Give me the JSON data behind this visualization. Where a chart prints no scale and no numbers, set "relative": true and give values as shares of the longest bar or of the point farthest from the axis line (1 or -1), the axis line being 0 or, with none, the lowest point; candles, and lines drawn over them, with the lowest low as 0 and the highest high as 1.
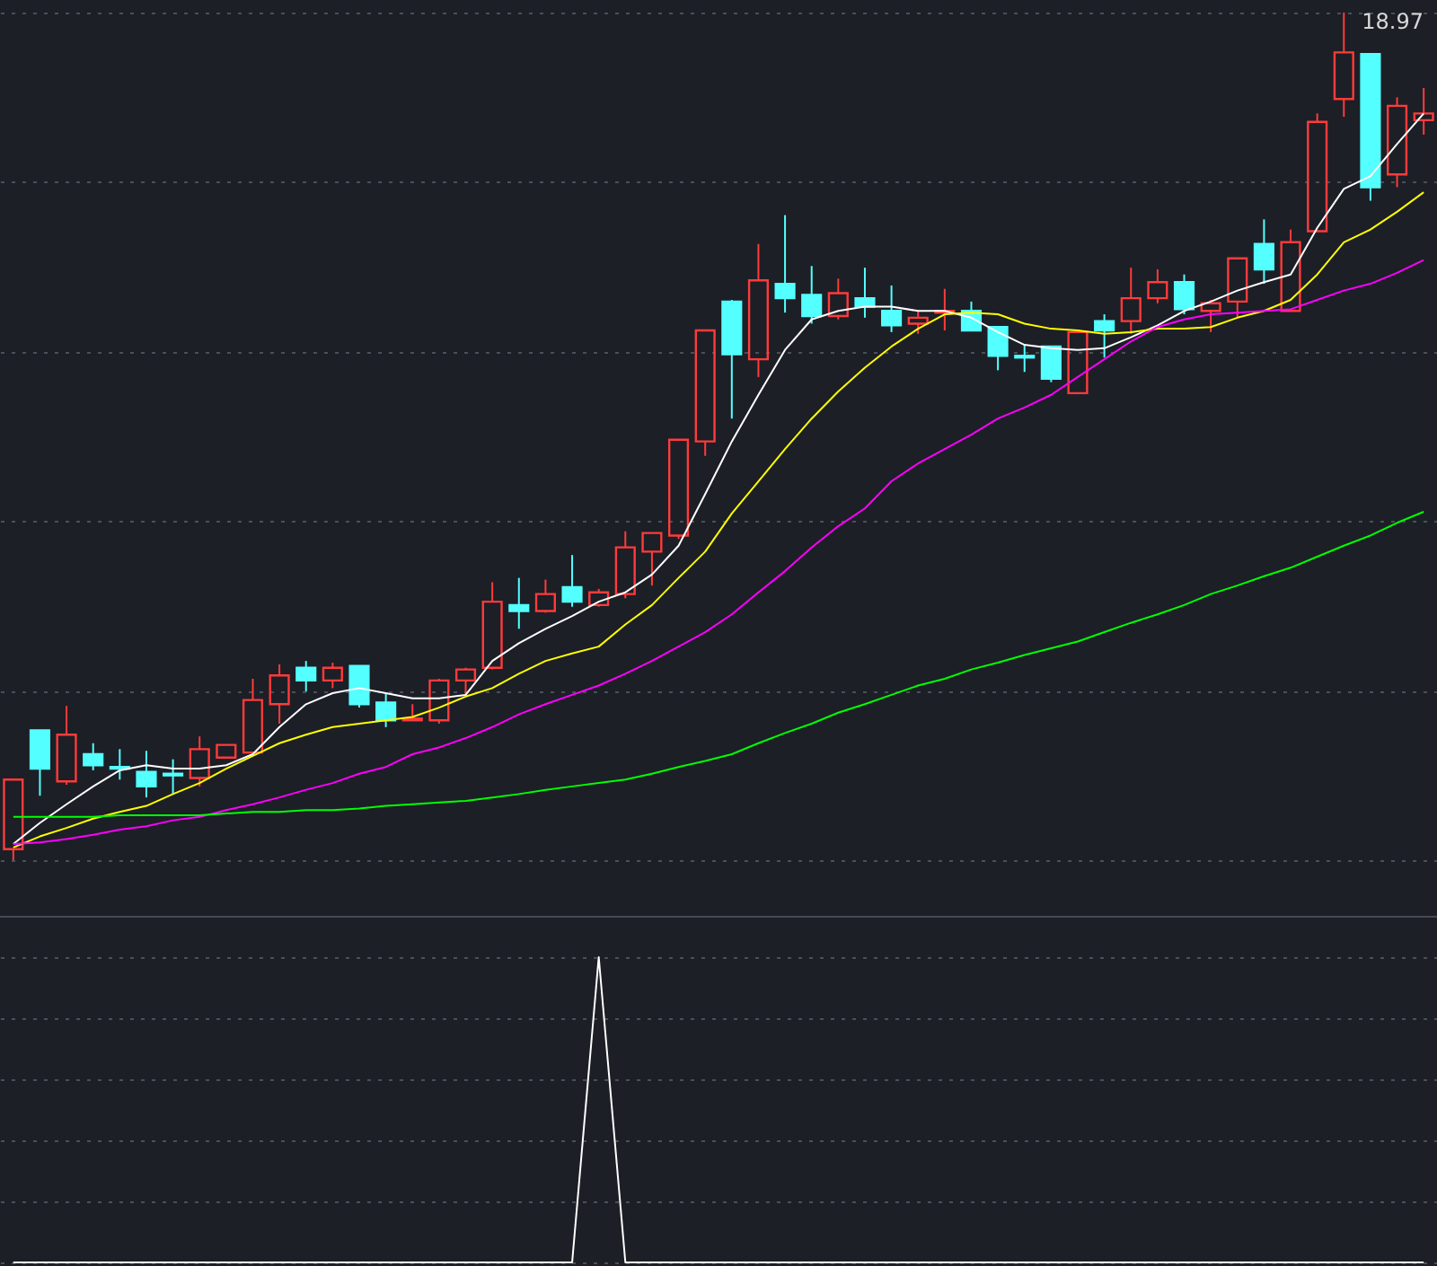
{
  "chart_data": [
    {
      "type": "candlestick",
      "relative": true,
      "grid": true,
      "categories": [
        null,
        null,
        null,
        null,
        null,
        null,
        null,
        null,
        null,
        null,
        null,
        null,
        null,
        null,
        null,
        null,
        null,
        null,
        null,
        null,
        null,
        null,
        null,
        null,
        null,
        null,
        null,
        null,
        null,
        null,
        null,
        null,
        null,
        null,
        null,
        null,
        null,
        null,
        null,
        null,
        null,
        null,
        null,
        null,
        null,
        null,
        null,
        null,
        null,
        null,
        null,
        null,
        null,
        null
      ],
      "ohlc": [
        [
          0.013,
          0.095,
          0,
          0.095
        ],
        [
          0.153,
          0.153,
          0.076,
          0.108
        ],
        [
          0.093,
          0.182,
          0.089,
          0.148
        ],
        [
          0.125,
          0.138,
          0.106,
          0.112
        ],
        [
          0.11,
          0.131,
          0.095,
          0.108
        ],
        [
          0.104,
          0.129,
          0.074,
          0.087
        ],
        [
          0.102,
          0.119,
          0.078,
          0.1
        ],
        [
          0.097,
          0.146,
          0.087,
          0.131
        ],
        [
          0.121,
          0.136,
          0.121,
          0.136
        ],
        [
          0.127,
          0.214,
          0.127,
          0.189
        ],
        [
          0.184,
          0.231,
          0.161,
          0.218
        ],
        [
          0.227,
          0.235,
          0.199,
          0.212
        ],
        [
          0.212,
          0.233,
          0.203,
          0.227
        ],
        [
          0.229,
          0.229,
          0.18,
          0.184
        ],
        [
          0.186,
          0.197,
          0.157,
          0.165
        ],
        [
          0.165,
          0.184,
          0.165,
          0.167
        ],
        [
          0.165,
          0.214,
          0.161,
          0.212
        ],
        [
          0.212,
          0.227,
          0.195,
          0.225
        ],
        [
          0.227,
          0.328,
          0.225,
          0.305
        ],
        [
          0.301,
          0.333,
          0.273,
          0.294
        ],
        [
          0.294,
          0.331,
          0.292,
          0.314
        ],
        [
          0.322,
          0.36,
          0.299,
          0.305
        ],
        [
          0.301,
          0.32,
          0.299,
          0.316
        ],
        [
          0.314,
          0.388,
          0.309,
          0.369
        ],
        [
          0.364,
          0.386,
          0.324,
          0.386
        ],
        [
          0.383,
          0.496,
          0.379,
          0.496
        ],
        [
          0.494,
          0.625,
          0.477,
          0.625
        ],
        [
          0.659,
          0.661,
          0.521,
          0.597
        ],
        [
          0.591,
          0.727,
          0.57,
          0.684
        ],
        [
          0.68,
          0.761,
          0.646,
          0.663
        ],
        [
          0.667,
          0.701,
          0.633,
          0.642
        ],
        [
          0.642,
          0.686,
          0.638,
          0.669
        ],
        [
          0.663,
          0.699,
          0.64,
          0.653
        ],
        [
          0.648,
          0.678,
          0.623,
          0.631
        ],
        [
          0.633,
          0.648,
          0.621,
          0.64
        ],
        [
          0.646,
          0.674,
          0.625,
          0.648
        ],
        [
          0.648,
          0.659,
          0.625,
          0.625
        ],
        [
          0.629,
          0.629,
          0.578,
          0.595
        ],
        [
          0.595,
          0.608,
          0.576,
          0.593
        ],
        [
          0.606,
          0.606,
          0.564,
          0.568
        ],
        [
          0.551,
          0.623,
          0.551,
          0.623
        ],
        [
          0.636,
          0.644,
          0.593,
          0.625
        ],
        [
          0.636,
          0.699,
          0.621,
          0.663
        ],
        [
          0.663,
          0.697,
          0.657,
          0.682
        ],
        [
          0.682,
          0.691,
          0.644,
          0.65
        ],
        [
          0.648,
          0.661,
          0.623,
          0.657
        ],
        [
          0.659,
          0.71,
          0.64,
          0.71
        ],
        [
          0.727,
          0.756,
          0.68,
          0.697
        ],
        [
          0.648,
          0.744,
          0.648,
          0.729
        ],
        [
          0.742,
          0.881,
          0.742,
          0.871
        ],
        [
          0.898,
          1,
          0.877,
          0.953
        ],
        [
          0.951,
          0.951,
          0.778,
          0.794
        ],
        [
          0.809,
          0.9,
          0.794,
          0.89
        ],
        [
          0.873,
          0.911,
          0.856,
          0.881
        ]
      ],
      "colors": [
        "#ff3b3b",
        "#54ffff",
        "#ff3b3b",
        "#54ffff",
        "#54ffff",
        "#54ffff",
        "#54ffff",
        "#ff3b3b",
        "#ff3b3b",
        "#ff3b3b",
        "#ff3b3b",
        "#54ffff",
        "#ff3b3b",
        "#54ffff",
        "#54ffff",
        "#ff3b3b",
        "#ff3b3b",
        "#ff3b3b",
        "#ff3b3b",
        "#54ffff",
        "#ff3b3b",
        "#54ffff",
        "#ff3b3b",
        "#ff3b3b",
        "#ff3b3b",
        "#ff3b3b",
        "#ff3b3b",
        "#54ffff",
        "#ff3b3b",
        "#54ffff",
        "#54ffff",
        "#ff3b3b",
        "#54ffff",
        "#54ffff",
        "#ff3b3b",
        "#ff3b3b",
        "#54ffff",
        "#54ffff",
        "#54ffff",
        "#54ffff",
        "#ff3b3b",
        "#54ffff",
        "#ff3b3b",
        "#ff3b3b",
        "#54ffff",
        "#ff3b3b",
        "#ff3b3b",
        "#54ffff",
        "#ff3b3b",
        "#ff3b3b",
        "#ff3b3b",
        "#54ffff",
        "#ff3b3b",
        "#ff3b3b"
      ],
      "series": [
        {
          "type": "line",
          "color": "#ffffff",
          "values": [
            0.019,
            0.044,
            0.066,
            0.087,
            0.106,
            0.112,
            0.108,
            0.108,
            0.112,
            0.125,
            0.157,
            0.184,
            0.197,
            0.203,
            0.197,
            0.191,
            0.191,
            0.195,
            0.235,
            0.256,
            0.273,
            0.288,
            0.305,
            0.316,
            0.337,
            0.371,
            0.432,
            0.494,
            0.549,
            0.602,
            0.638,
            0.648,
            0.653,
            0.653,
            0.648,
            0.648,
            0.64,
            0.623,
            0.608,
            0.604,
            0.602,
            0.604,
            0.617,
            0.631,
            0.648,
            0.659,
            0.672,
            0.682,
            0.691,
            0.746,
            0.792,
            0.807,
            0.845,
            0.881
          ]
        },
        {
          "type": "line",
          "color": "#ffff00",
          "values": [
            0.015,
            0.028,
            0.038,
            0.049,
            0.057,
            0.064,
            0.078,
            0.091,
            0.108,
            0.123,
            0.138,
            0.148,
            0.157,
            0.161,
            0.165,
            0.169,
            0.18,
            0.193,
            0.203,
            0.22,
            0.235,
            0.244,
            0.252,
            0.278,
            0.301,
            0.333,
            0.364,
            0.409,
            0.447,
            0.485,
            0.521,
            0.553,
            0.581,
            0.606,
            0.627,
            0.644,
            0.646,
            0.644,
            0.633,
            0.627,
            0.625,
            0.621,
            0.623,
            0.627,
            0.627,
            0.629,
            0.64,
            0.648,
            0.661,
            0.691,
            0.729,
            0.744,
            0.765,
            0.788
          ]
        },
        {
          "type": "line",
          "color": "#ff00ff",
          "values": [
            0.019,
            0.021,
            0.025,
            0.03,
            0.036,
            0.04,
            0.047,
            0.051,
            0.059,
            0.066,
            0.074,
            0.083,
            0.091,
            0.102,
            0.11,
            0.125,
            0.133,
            0.144,
            0.157,
            0.172,
            0.184,
            0.195,
            0.206,
            0.22,
            0.235,
            0.252,
            0.269,
            0.29,
            0.316,
            0.341,
            0.369,
            0.394,
            0.415,
            0.447,
            0.468,
            0.485,
            0.502,
            0.521,
            0.534,
            0.549,
            0.57,
            0.591,
            0.612,
            0.629,
            0.638,
            0.644,
            0.646,
            0.648,
            0.65,
            0.661,
            0.672,
            0.68,
            0.693,
            0.708
          ]
        },
        {
          "type": "line",
          "color": "#00ff00",
          "values": [
            0.051,
            0.051,
            0.051,
            0.051,
            0.053,
            0.053,
            0.053,
            0.053,
            0.055,
            0.057,
            0.057,
            0.059,
            0.059,
            0.061,
            0.064,
            0.066,
            0.068,
            0.07,
            0.074,
            0.078,
            0.083,
            0.087,
            0.091,
            0.095,
            0.102,
            0.11,
            0.117,
            0.125,
            0.138,
            0.15,
            0.161,
            0.174,
            0.184,
            0.195,
            0.206,
            0.214,
            0.225,
            0.233,
            0.242,
            0.25,
            0.258,
            0.269,
            0.28,
            0.29,
            0.301,
            0.314,
            0.324,
            0.335,
            0.345,
            0.358,
            0.371,
            0.383,
            0.398,
            0.411
          ]
        }
      ],
      "annotations": [
        "18.97"
      ]
    },
    {
      "type": "line",
      "relative": true,
      "grid": true,
      "categories": [
        null,
        null,
        null,
        null,
        null,
        null,
        null,
        null,
        null,
        null,
        null,
        null,
        null,
        null,
        null,
        null,
        null,
        null,
        null,
        null,
        null,
        null,
        null,
        null,
        null,
        null,
        null,
        null,
        null,
        null,
        null,
        null,
        null,
        null,
        null,
        null,
        null,
        null,
        null,
        null,
        null,
        null,
        null,
        null,
        null,
        null,
        null,
        null,
        null,
        null,
        null,
        null,
        null,
        null
      ],
      "series": [
        {
          "color": "#ffffff",
          "values": [
            0,
            0,
            0,
            0,
            0,
            0,
            0,
            0,
            0,
            0,
            0,
            0,
            0,
            0,
            0,
            0,
            0,
            0,
            0,
            0,
            0,
            0,
            1,
            0,
            0,
            0,
            0,
            0,
            0,
            0,
            0,
            0,
            0,
            0,
            0,
            0,
            0,
            0,
            0,
            0,
            0,
            0,
            0,
            0,
            0,
            0,
            0,
            0,
            0,
            0,
            0,
            0,
            0,
            0
          ]
        }
      ]
    }
  ]
}
